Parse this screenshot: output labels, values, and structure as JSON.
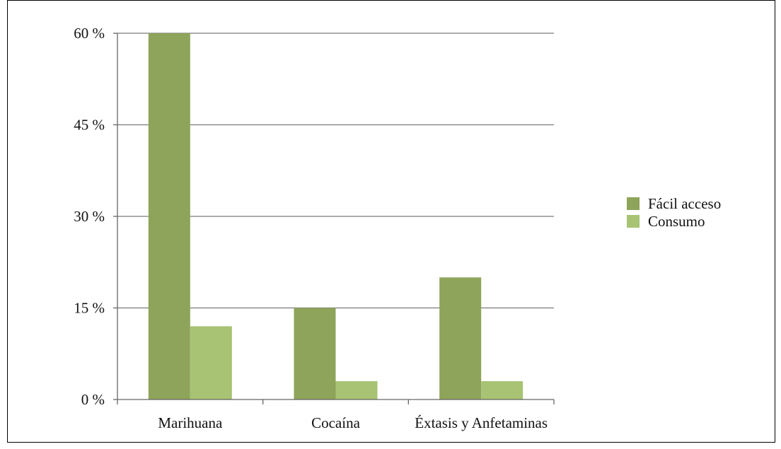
{
  "chart_data": {
    "type": "bar",
    "title": "",
    "xlabel": "",
    "ylabel": "",
    "categories": [
      "Marihuana",
      "Cocaína",
      "Éxtasis y Anfetaminas"
    ],
    "series": [
      {
        "name": "Fácil acceso",
        "values": [
          60,
          15,
          20
        ],
        "color": "#8ea45a"
      },
      {
        "name": "Consumo",
        "values": [
          12,
          3,
          3
        ],
        "color": "#a7c373"
      }
    ],
    "ylim": [
      0,
      60
    ],
    "yticks": [
      0,
      15,
      30,
      45,
      60
    ],
    "ytick_labels": [
      "0 %",
      "15 %",
      "30 %",
      "45 %",
      "60 %"
    ],
    "grid": true,
    "legend_position": "right"
  }
}
